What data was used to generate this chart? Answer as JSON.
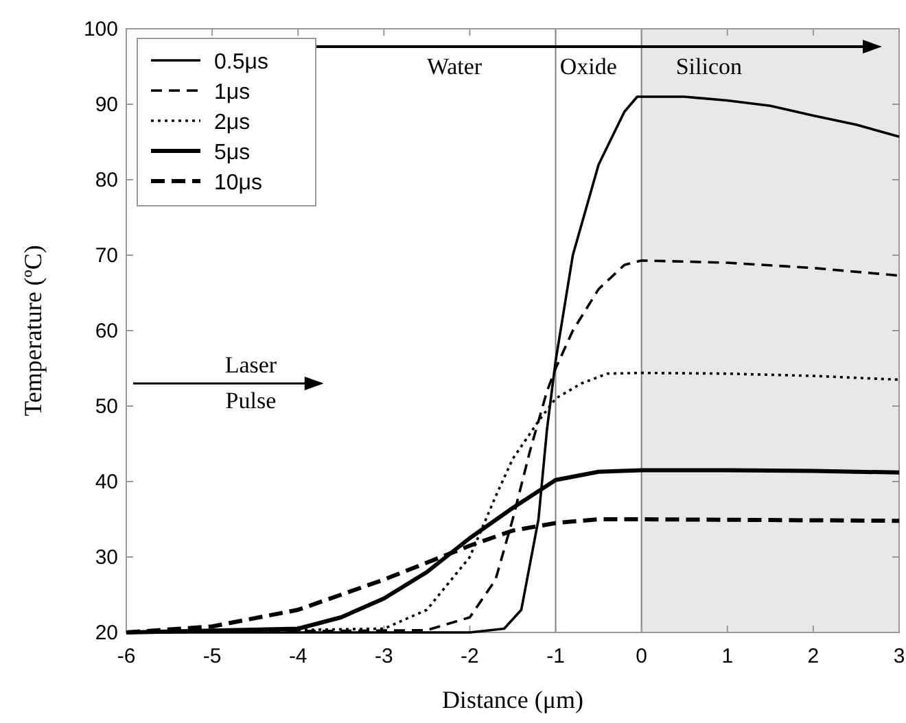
{
  "chart_data": {
    "type": "line",
    "xlabel": "Distance (μm)",
    "ylabel": "Temperature (ºC)",
    "xlim": [
      -6,
      3
    ],
    "ylim": [
      20,
      100
    ],
    "xticks": [
      -6,
      -5,
      -4,
      -3,
      -2,
      -1,
      0,
      1,
      2,
      3
    ],
    "yticks": [
      20,
      30,
      40,
      50,
      60,
      70,
      80,
      90,
      100
    ],
    "grid": false,
    "legend": "top left",
    "series": [
      {
        "name": "0.5μs",
        "color": "#000000",
        "line_style": "solid",
        "x": [
          -6,
          -2,
          -1.6,
          -1.4,
          -1.2,
          -1.1,
          -1,
          -0.8,
          -0.5,
          -0.2,
          -0.05,
          0,
          0.5,
          1,
          1.5,
          2,
          2.5,
          3
        ],
        "values": [
          20,
          20,
          20.5,
          23,
          35,
          47,
          56,
          70,
          82,
          89,
          91,
          91,
          91,
          90.5,
          89.8,
          88.5,
          87.3,
          85.7
        ]
      },
      {
        "name": "1μs",
        "color": "#000000",
        "line_style": "dashed",
        "x": [
          -6,
          -2.5,
          -2,
          -1.7,
          -1.5,
          -1.3,
          -1.1,
          -1,
          -0.8,
          -0.5,
          -0.2,
          0,
          1,
          2,
          3
        ],
        "values": [
          20,
          20.3,
          22,
          27,
          35,
          44,
          52,
          55,
          60,
          65.5,
          68.7,
          69.3,
          69,
          68.3,
          67.3
        ]
      },
      {
        "name": "2μs",
        "color": "#000000",
        "line_style": "dotted",
        "x": [
          -6,
          -3,
          -2.5,
          -2,
          -1.7,
          -1.5,
          -1.2,
          -1,
          -0.7,
          -0.4,
          0,
          1,
          2,
          3
        ],
        "values": [
          20,
          20.5,
          23,
          30,
          38,
          43,
          48,
          51,
          53,
          54.3,
          54.4,
          54.3,
          54,
          53.5
        ]
      },
      {
        "name": "5μs",
        "color": "#000000",
        "line_style": "solid",
        "x": [
          -6,
          -4,
          -3.5,
          -3,
          -2.5,
          -2,
          -1.5,
          -1,
          -0.5,
          0,
          1,
          2,
          3
        ],
        "values": [
          20,
          20.5,
          22,
          24.5,
          28,
          32.5,
          36.5,
          40.2,
          41.3,
          41.5,
          41.5,
          41.4,
          41.2
        ]
      },
      {
        "name": "10μs",
        "color": "#000000",
        "line_style": "dashed",
        "x": [
          -6,
          -5,
          -4,
          -3,
          -2,
          -1.5,
          -1,
          -0.5,
          0,
          3
        ],
        "values": [
          20,
          20.8,
          23,
          27,
          31.5,
          33.5,
          34.5,
          35,
          35,
          34.8
        ]
      }
    ],
    "bands": [
      {
        "axis": "x",
        "from": 0,
        "to": 3,
        "color": "#e8e8e8"
      }
    ],
    "ref_lines": [
      {
        "axis": "x",
        "value": -1,
        "color": "#808080"
      },
      {
        "axis": "x",
        "value": 0,
        "color": "#808080"
      }
    ],
    "annotations": [
      "Water",
      "Oxide",
      "Silicon",
      "Laser Pulse"
    ]
  }
}
